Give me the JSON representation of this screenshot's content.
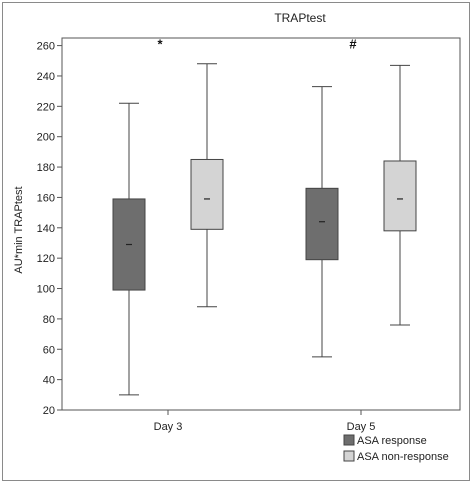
{
  "chart_data": {
    "type": "boxplot",
    "title": "TRAPtest",
    "ylabel": "AU*min TRAPtest",
    "xlabel": "",
    "ylim": [
      20,
      265
    ],
    "yticks": [
      20,
      40,
      60,
      80,
      100,
      120,
      140,
      160,
      180,
      200,
      220,
      240,
      260
    ],
    "grid": false,
    "legend_position": "bottom-right",
    "categories": [
      "Day 3",
      "Day 5"
    ],
    "series": [
      {
        "name": "ASA response",
        "color": "#6e6e6e",
        "boxes": [
          {
            "min": 30,
            "q1": 99,
            "median": 129,
            "q3": 159,
            "max": 222
          },
          {
            "min": 55,
            "q1": 119,
            "median": 144,
            "q3": 166,
            "max": 233
          }
        ]
      },
      {
        "name": "ASA non-response",
        "color": "#d4d4d4",
        "boxes": [
          {
            "min": 88,
            "q1": 139,
            "median": 159,
            "q3": 185,
            "max": 248
          },
          {
            "min": 76,
            "q1": 138,
            "median": 159,
            "q3": 184,
            "max": 247
          }
        ]
      }
    ],
    "annotations": [
      {
        "text": "*",
        "category": "Day 3",
        "y": 262
      },
      {
        "text": "#",
        "category": "Day 5",
        "y": 262
      }
    ]
  }
}
